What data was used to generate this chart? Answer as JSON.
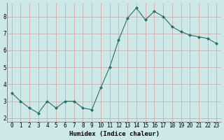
{
  "x": [
    0,
    1,
    2,
    3,
    4,
    5,
    6,
    7,
    8,
    9,
    10,
    11,
    12,
    13,
    14,
    15,
    16,
    17,
    18,
    19,
    20,
    21,
    22,
    23
  ],
  "y": [
    3.5,
    3.0,
    2.6,
    2.3,
    3.0,
    2.6,
    3.0,
    3.0,
    2.6,
    2.5,
    3.8,
    5.0,
    6.6,
    7.9,
    8.5,
    7.8,
    8.3,
    8.0,
    7.4,
    7.1,
    6.9,
    6.8,
    6.7,
    6.4
  ],
  "xlabel": "Humidex (Indice chaleur)",
  "line_color": "#2d6e63",
  "marker": "D",
  "marker_size": 2.0,
  "bg_color": "#cce8e8",
  "grid_color": "#d4a0a0",
  "ylim": [
    1.8,
    8.8
  ],
  "xlim": [
    -0.5,
    23.5
  ],
  "yticks": [
    2,
    3,
    4,
    5,
    6,
    7,
    8
  ],
  "xticks": [
    0,
    1,
    2,
    3,
    4,
    5,
    6,
    7,
    8,
    9,
    10,
    11,
    12,
    13,
    14,
    15,
    16,
    17,
    18,
    19,
    20,
    21,
    22,
    23
  ],
  "tick_fontsize": 5.5,
  "xlabel_fontsize": 6.5,
  "linewidth": 0.8
}
